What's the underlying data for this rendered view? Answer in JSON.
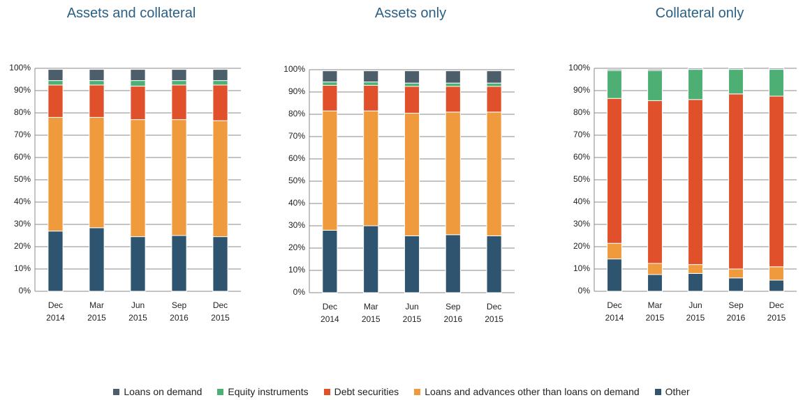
{
  "legend": [
    {
      "name": "Loans on demand",
      "color": "#4d5e6b"
    },
    {
      "name": "Equity instruments",
      "color": "#4daf73"
    },
    {
      "name": "Debt securities",
      "color": "#e0502a"
    },
    {
      "name": "Loans and advances other than loans on demand",
      "color": "#f09a3e"
    },
    {
      "name": "Other",
      "color": "#2e5470"
    }
  ],
  "chart_data": [
    {
      "type": "stacked-bar",
      "title": "Assets and collateral",
      "categories": [
        "Dec 2014",
        "Mar 2015",
        "Jun 2015",
        "Sep 2016",
        "Dec 2015"
      ],
      "series": [
        {
          "values": [
            5,
            5,
            5,
            5,
            5
          ]
        },
        {
          "values": [
            2,
            2,
            2.5,
            2,
            2
          ]
        },
        {
          "values": [
            14.5,
            14.5,
            15,
            15.5,
            16
          ]
        },
        {
          "values": [
            51,
            49.5,
            52.5,
            52,
            52
          ]
        },
        {
          "values": [
            27,
            28.5,
            24.5,
            25,
            24.5
          ]
        }
      ],
      "ylim": [
        0,
        100
      ],
      "yticks": [
        {
          "value": 0,
          "label": "0%"
        },
        {
          "value": 10,
          "label": "10%"
        },
        {
          "value": 20,
          "label": "20%"
        },
        {
          "value": 30,
          "label": "30%"
        },
        {
          "value": 40,
          "label": "40%"
        },
        {
          "value": 50,
          "label": "50%"
        },
        {
          "value": 60,
          "label": "60%"
        },
        {
          "value": 70,
          "label": "70%"
        },
        {
          "value": 80,
          "label": "80%"
        },
        {
          "value": 90,
          "label": "90%"
        },
        {
          "value": 100,
          "label": "100%"
        }
      ],
      "grid": true
    },
    {
      "type": "stacked-bar",
      "title": "Assets only",
      "categories": [
        "Dec 2014",
        "Mar 2015",
        "Jun 2015",
        "Sep 2016",
        "Dec 2015"
      ],
      "series": [
        {
          "values": [
            5,
            5,
            5.5,
            5.5,
            5.5
          ]
        },
        {
          "values": [
            1.5,
            1.5,
            1.5,
            1.5,
            1.5
          ]
        },
        {
          "values": [
            11.5,
            11.5,
            12,
            11.5,
            11.5
          ]
        },
        {
          "values": [
            53.5,
            51.5,
            55,
            55,
            55.5
          ]
        },
        {
          "values": [
            28,
            30,
            25.5,
            26,
            25.5
          ]
        }
      ],
      "ylim": [
        0,
        100
      ],
      "yticks": [
        {
          "value": 0,
          "label": "0%"
        },
        {
          "value": 10,
          "label": "10%"
        },
        {
          "value": 20,
          "label": "20%"
        },
        {
          "value": 30,
          "label": "30%"
        },
        {
          "value": 40,
          "label": "40%"
        },
        {
          "value": 50,
          "label": "50%"
        },
        {
          "value": 60,
          "label": "60%"
        },
        {
          "value": 70,
          "label": "70%"
        },
        {
          "value": 80,
          "label": "80%"
        },
        {
          "value": 90,
          "label": "90%"
        },
        {
          "value": 100,
          "label": "100%"
        }
      ],
      "grid": true
    },
    {
      "type": "stacked-bar",
      "title": "Collateral only",
      "categories": [
        "Dec 2014",
        "Mar 2015",
        "Jun 2015",
        "Sep 2016",
        "Dec 2015"
      ],
      "series": [
        {
          "values": [
            0.5,
            0.5,
            0.5,
            0.5,
            0.5
          ]
        },
        {
          "values": [
            12.5,
            13.5,
            13.5,
            11,
            12
          ]
        },
        {
          "values": [
            65,
            73,
            74,
            78.5,
            76.5
          ]
        },
        {
          "values": [
            7,
            5,
            4,
            4,
            6
          ]
        },
        {
          "values": [
            14.5,
            7.5,
            8,
            6,
            5
          ]
        }
      ],
      "ylim": [
        0,
        100
      ],
      "yticks": [
        {
          "value": 0,
          "label": "0%"
        },
        {
          "value": 10,
          "label": "10%"
        },
        {
          "value": 20,
          "label": "20%"
        },
        {
          "value": 30,
          "label": "30%"
        },
        {
          "value": 40,
          "label": "40%"
        },
        {
          "value": 50,
          "label": "50%"
        },
        {
          "value": 60,
          "label": "60%"
        },
        {
          "value": 70,
          "label": "70%"
        },
        {
          "value": 80,
          "label": "80%"
        },
        {
          "value": 90,
          "label": "90%"
        },
        {
          "value": 100,
          "label": "100%"
        }
      ],
      "grid": true
    }
  ]
}
